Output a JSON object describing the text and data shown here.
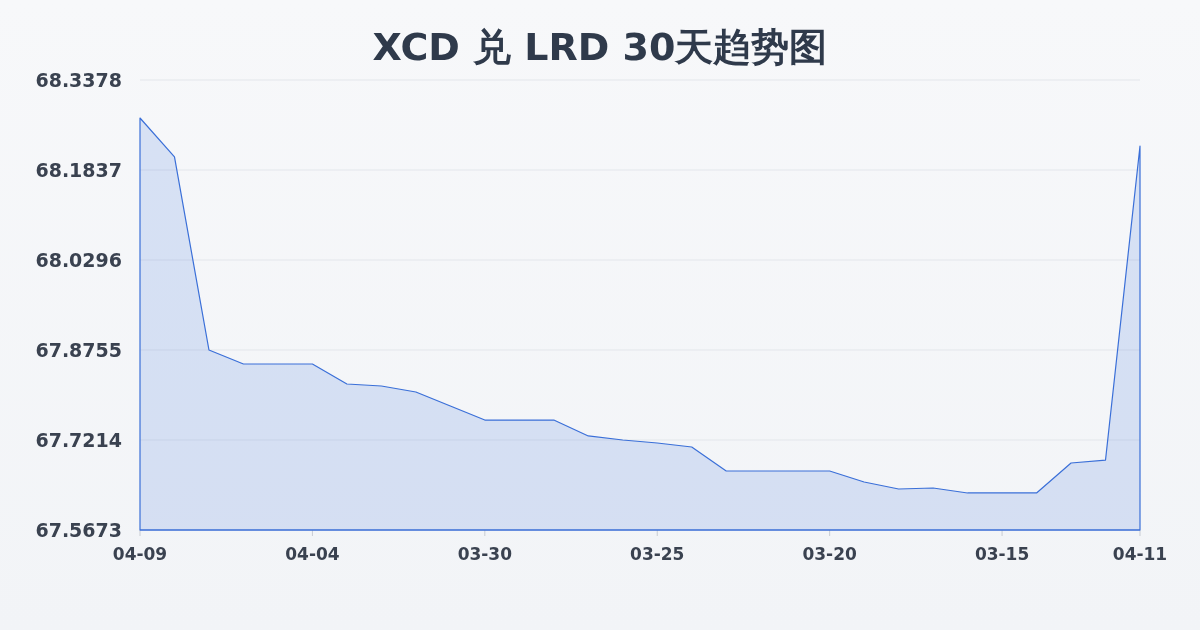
{
  "chart_data": {
    "type": "area",
    "title": "XCD 兑 LRD 30天趋势图",
    "categories": [
      "04-09",
      null,
      null,
      null,
      null,
      "04-04",
      null,
      null,
      null,
      null,
      "03-30",
      null,
      null,
      null,
      null,
      "03-25",
      null,
      null,
      null,
      null,
      "03-20",
      null,
      null,
      null,
      null,
      "03-15",
      null,
      null,
      null,
      "04-11"
    ],
    "values": [
      68.2727,
      68.206,
      67.8755,
      67.8515,
      67.8515,
      67.8515,
      67.8173,
      67.8139,
      67.8036,
      67.7796,
      67.7556,
      67.7556,
      67.7556,
      67.7283,
      67.7214,
      67.7163,
      67.7094,
      67.6683,
      67.6683,
      67.6683,
      67.6683,
      67.6495,
      67.6375,
      67.6392,
      67.6307,
      67.6307,
      67.6307,
      67.682,
      67.6871,
      68.2248
    ],
    "color": "#3a6fd8",
    "ylim": [
      67.5673,
      68.3378
    ],
    "yticks": [
      67.5673,
      67.7214,
      67.8755,
      68.0296,
      68.1837,
      68.3378
    ],
    "grid": "y"
  }
}
